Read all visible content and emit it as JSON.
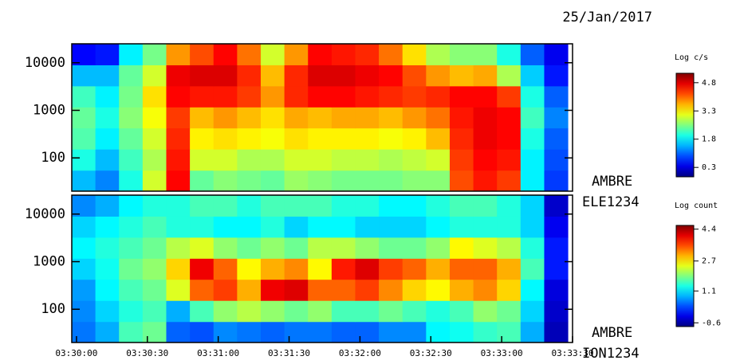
{
  "date": "25/Jan/2017",
  "chart_data": [
    {
      "type": "heatmap",
      "instrument": "AMBRE",
      "sensor": "ELE1234",
      "colorbar_label": "Log c/s",
      "log_y": true,
      "xlim": [
        12598,
        12810
      ],
      "ylim": [
        20,
        25000
      ],
      "yticks": [
        100,
        1000,
        10000
      ],
      "clim": [
        -0.2,
        5.3
      ],
      "cticks": [
        0.3,
        1.8,
        3.3,
        4.8
      ],
      "xbins": [
        12598,
        12608,
        12618,
        12628,
        12638,
        12648,
        12658,
        12668,
        12678,
        12688,
        12698,
        12708,
        12718,
        12728,
        12738,
        12748,
        12758,
        12768,
        12778,
        12788,
        12798,
        12808
      ],
      "ybins": [
        20,
        55,
        153,
        425,
        1175,
        3258,
        9016,
        25000
      ],
      "z": [
        [
          1.5,
          1.2,
          2.0,
          3.0,
          4.6,
          2.4,
          2.6,
          2.5,
          2.4,
          2.7,
          2.6,
          2.5,
          2.5,
          2.5,
          2.6,
          2.6,
          4.2,
          4.5,
          4.3,
          1.8,
          0.8
        ],
        [
          2.0,
          1.5,
          2.2,
          2.8,
          4.5,
          3.0,
          3.0,
          2.8,
          2.8,
          3.0,
          3.0,
          2.9,
          2.9,
          2.8,
          2.9,
          3.0,
          4.3,
          4.6,
          4.5,
          1.8,
          0.9
        ],
        [
          2.3,
          1.8,
          2.4,
          3.0,
          4.4,
          3.3,
          3.4,
          3.3,
          3.2,
          3.4,
          3.3,
          3.3,
          3.3,
          3.2,
          3.3,
          3.6,
          4.4,
          4.7,
          4.6,
          2.0,
          1.0
        ],
        [
          2.4,
          2.0,
          2.6,
          3.2,
          4.3,
          3.6,
          3.8,
          3.6,
          3.4,
          3.7,
          3.6,
          3.7,
          3.7,
          3.6,
          3.8,
          4.0,
          4.5,
          4.7,
          4.6,
          2.2,
          1.2
        ],
        [
          2.2,
          1.8,
          2.5,
          3.4,
          4.6,
          4.5,
          4.5,
          4.3,
          3.8,
          4.4,
          4.6,
          4.6,
          4.5,
          4.4,
          4.3,
          4.4,
          4.6,
          4.6,
          4.3,
          2.0,
          1.0
        ],
        [
          1.5,
          1.5,
          2.4,
          3.0,
          4.7,
          4.8,
          4.8,
          4.4,
          3.6,
          4.4,
          4.8,
          4.8,
          4.7,
          4.6,
          4.2,
          3.8,
          3.6,
          3.7,
          2.8,
          1.6,
          0.6
        ],
        [
          0.5,
          0.6,
          1.8,
          2.5,
          3.8,
          4.2,
          4.6,
          4.0,
          3.0,
          3.8,
          4.6,
          4.5,
          4.4,
          4.0,
          3.4,
          2.8,
          2.6,
          2.6,
          2.0,
          1.0,
          0.4
        ]
      ]
    },
    {
      "type": "heatmap",
      "instrument": "AMBRE",
      "sensor": "ION1234",
      "colorbar_label": "Log count",
      "log_y": true,
      "xlim": [
        12598,
        12810
      ],
      "ylim": [
        20,
        25000
      ],
      "yticks": [
        100,
        1000,
        10000
      ],
      "clim": [
        -0.8,
        4.6
      ],
      "cticks": [
        -0.6,
        1.1,
        2.7,
        4.4
      ],
      "xticks": [
        {
          "value": 12600,
          "label": "03:30:00"
        },
        {
          "value": 12630,
          "label": "03:30:30"
        },
        {
          "value": 12660,
          "label": "03:31:00"
        },
        {
          "value": 12690,
          "label": "03:31:30"
        },
        {
          "value": 12720,
          "label": "03:32:00"
        },
        {
          "value": 12750,
          "label": "03:32:30"
        },
        {
          "value": 12780,
          "label": "03:33:00"
        },
        {
          "value": 12810,
          "label": "03:33:30"
        }
      ],
      "xbins": [
        12598,
        12608,
        12618,
        12628,
        12638,
        12648,
        12658,
        12668,
        12678,
        12688,
        12698,
        12708,
        12718,
        12728,
        12738,
        12748,
        12758,
        12768,
        12778,
        12788,
        12798,
        12808
      ],
      "ybins": [
        20,
        55,
        153,
        425,
        1175,
        3258,
        9016,
        25000
      ],
      "z": [
        [
          0.5,
          0.8,
          1.6,
          1.8,
          0.4,
          0.3,
          0.6,
          0.5,
          0.4,
          0.5,
          0.5,
          0.4,
          0.4,
          0.6,
          0.6,
          1.2,
          1.3,
          1.5,
          1.6,
          0.8,
          -0.5
        ],
        [
          0.6,
          1.0,
          1.4,
          1.6,
          0.8,
          1.6,
          2.0,
          2.2,
          2.0,
          1.8,
          2.0,
          1.6,
          1.6,
          1.8,
          1.6,
          1.4,
          1.6,
          2.0,
          1.8,
          1.0,
          -0.4
        ],
        [
          0.7,
          1.2,
          1.6,
          1.8,
          2.4,
          3.4,
          3.6,
          3.0,
          4.0,
          4.1,
          3.4,
          3.4,
          3.6,
          3.2,
          2.8,
          2.6,
          3.0,
          3.2,
          2.8,
          1.2,
          -0.3
        ],
        [
          1.0,
          1.3,
          1.8,
          2.0,
          2.8,
          4.0,
          3.4,
          2.6,
          3.0,
          3.2,
          2.6,
          3.8,
          4.1,
          3.6,
          3.4,
          3.0,
          3.4,
          3.4,
          3.0,
          1.6,
          0.0
        ],
        [
          1.2,
          1.4,
          1.6,
          1.8,
          2.2,
          2.4,
          2.0,
          1.8,
          2.0,
          1.8,
          2.2,
          2.2,
          2.0,
          1.8,
          1.8,
          2.0,
          2.6,
          2.4,
          2.2,
          1.4,
          0.0
        ],
        [
          1.0,
          1.2,
          1.4,
          1.6,
          1.4,
          1.4,
          1.2,
          1.2,
          1.4,
          1.0,
          1.2,
          1.2,
          1.0,
          1.0,
          1.0,
          1.2,
          1.4,
          1.4,
          1.4,
          1.0,
          -0.2
        ],
        [
          0.6,
          0.8,
          1.2,
          1.4,
          1.4,
          1.6,
          1.6,
          1.4,
          1.6,
          1.6,
          1.6,
          1.4,
          1.4,
          1.2,
          1.2,
          1.4,
          1.6,
          1.6,
          1.4,
          1.0,
          -0.4
        ]
      ]
    }
  ]
}
